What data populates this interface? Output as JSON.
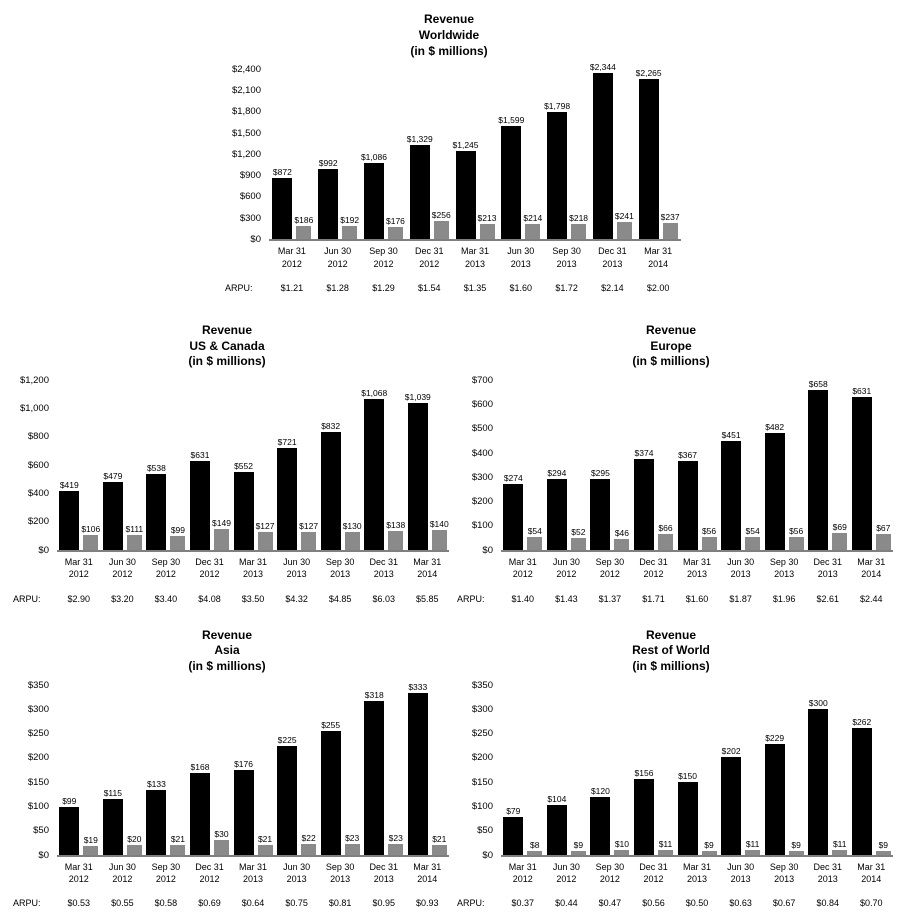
{
  "arpu_caption": "ARPU:",
  "colors": {
    "bar_primary": "#000000",
    "bar_secondary": "#8a8a8a",
    "axis_line": "#7f7f7f",
    "text": "#000000",
    "background": "#ffffff"
  },
  "chart_data": [
    {
      "type": "bar",
      "title_lines": [
        "Revenue",
        "Worldwide",
        "(in $ millions)"
      ],
      "xlabel": "",
      "ylabel": "",
      "grid": false,
      "legend": "none",
      "ylim": [
        0,
        2400
      ],
      "yticks": [
        {
          "value": 0,
          "label": "$0"
        },
        {
          "value": 300,
          "label": "$300"
        },
        {
          "value": 600,
          "label": "$600"
        },
        {
          "value": 900,
          "label": "$900"
        },
        {
          "value": 1200,
          "label": "$1,200"
        },
        {
          "value": 1500,
          "label": "$1,500"
        },
        {
          "value": 1800,
          "label": "$1,800"
        },
        {
          "value": 2100,
          "label": "$2,100"
        },
        {
          "value": 2400,
          "label": "$2,400"
        }
      ],
      "categories": [
        "Mar 31 2012",
        "Jun 30 2012",
        "Sep 30 2012",
        "Dec 31 2012",
        "Mar 31 2013",
        "Jun 30 2013",
        "Sep 30 2013",
        "Dec 31 2013",
        "Mar 31 2014"
      ],
      "category_label_lines": [
        [
          "Mar 31",
          "2012"
        ],
        [
          "Jun 30",
          "2012"
        ],
        [
          "Sep 30",
          "2012"
        ],
        [
          "Dec 31",
          "2012"
        ],
        [
          "Mar 31",
          "2013"
        ],
        [
          "Jun 30",
          "2013"
        ],
        [
          "Sep 30",
          "2013"
        ],
        [
          "Dec 31",
          "2013"
        ],
        [
          "Mar 31",
          "2014"
        ]
      ],
      "series": [
        {
          "name": "revenue",
          "color": "#000000",
          "values": [
            872,
            992,
            1086,
            1329,
            1245,
            1599,
            1798,
            2344,
            2265
          ],
          "labels": [
            "$872",
            "$992",
            "$1,086",
            "$1,329",
            "$1,245",
            "$1,599",
            "$1,798",
            "$2,344",
            "$2,265"
          ]
        },
        {
          "name": "secondary",
          "color": "#8a8a8a",
          "values": [
            186,
            192,
            176,
            256,
            213,
            214,
            218,
            241,
            237
          ],
          "labels": [
            "$186",
            "$192",
            "$176",
            "$256",
            "$213",
            "$214",
            "$218",
            "$241",
            "$237"
          ]
        }
      ],
      "arpu_values": [
        "$1.21",
        "$1.28",
        "$1.29",
        "$1.54",
        "$1.35",
        "$1.60",
        "$1.72",
        "$2.14",
        "$2.00"
      ]
    },
    {
      "type": "bar",
      "title_lines": [
        "Revenue",
        "US & Canada",
        "(in $ millions)"
      ],
      "xlabel": "",
      "ylabel": "",
      "grid": false,
      "legend": "none",
      "ylim": [
        0,
        1200
      ],
      "yticks": [
        {
          "value": 0,
          "label": "$0"
        },
        {
          "value": 200,
          "label": "$200"
        },
        {
          "value": 400,
          "label": "$400"
        },
        {
          "value": 600,
          "label": "$600"
        },
        {
          "value": 800,
          "label": "$800"
        },
        {
          "value": 1000,
          "label": "$1,000"
        },
        {
          "value": 1200,
          "label": "$1,200"
        }
      ],
      "categories": [
        "Mar 31 2012",
        "Jun 30 2012",
        "Sep 30 2012",
        "Dec 31 2012",
        "Mar 31 2013",
        "Jun 30 2013",
        "Sep 30 2013",
        "Dec 31 2013",
        "Mar 31 2014"
      ],
      "category_label_lines": [
        [
          "Mar 31",
          "2012"
        ],
        [
          "Jun 30",
          "2012"
        ],
        [
          "Sep 30",
          "2012"
        ],
        [
          "Dec 31",
          "2012"
        ],
        [
          "Mar 31",
          "2013"
        ],
        [
          "Jun 30",
          "2013"
        ],
        [
          "Sep 30",
          "2013"
        ],
        [
          "Dec 31",
          "2013"
        ],
        [
          "Mar 31",
          "2014"
        ]
      ],
      "series": [
        {
          "name": "revenue",
          "color": "#000000",
          "values": [
            419,
            479,
            538,
            631,
            552,
            721,
            832,
            1068,
            1039
          ],
          "labels": [
            "$419",
            "$479",
            "$538",
            "$631",
            "$552",
            "$721",
            "$832",
            "$1,068",
            "$1,039"
          ]
        },
        {
          "name": "secondary",
          "color": "#8a8a8a",
          "values": [
            106,
            111,
            99,
            149,
            127,
            127,
            130,
            138,
            140
          ],
          "labels": [
            "$106",
            "$111",
            "$99",
            "$149",
            "$127",
            "$127",
            "$130",
            "$138",
            "$140"
          ]
        }
      ],
      "arpu_values": [
        "$2.90",
        "$3.20",
        "$3.40",
        "$4.08",
        "$3.50",
        "$4.32",
        "$4.85",
        "$6.03",
        "$5.85"
      ]
    },
    {
      "type": "bar",
      "title_lines": [
        "Revenue",
        "Europe",
        "(in $ millions)"
      ],
      "xlabel": "",
      "ylabel": "",
      "grid": false,
      "legend": "none",
      "ylim": [
        0,
        700
      ],
      "yticks": [
        {
          "value": 0,
          "label": "$0"
        },
        {
          "value": 100,
          "label": "$100"
        },
        {
          "value": 200,
          "label": "$200"
        },
        {
          "value": 300,
          "label": "$300"
        },
        {
          "value": 400,
          "label": "$400"
        },
        {
          "value": 500,
          "label": "$500"
        },
        {
          "value": 600,
          "label": "$600"
        },
        {
          "value": 700,
          "label": "$700"
        }
      ],
      "categories": [
        "Mar 31 2012",
        "Jun 30 2012",
        "Sep 30 2012",
        "Dec 31 2012",
        "Mar 31 2013",
        "Jun 30 2013",
        "Sep 30 2013",
        "Dec 31 2013",
        "Mar 31 2014"
      ],
      "category_label_lines": [
        [
          "Mar 31",
          "2012"
        ],
        [
          "Jun 30",
          "2012"
        ],
        [
          "Sep 30",
          "2012"
        ],
        [
          "Dec 31",
          "2012"
        ],
        [
          "Mar 31",
          "2013"
        ],
        [
          "Jun 30",
          "2013"
        ],
        [
          "Sep 30",
          "2013"
        ],
        [
          "Dec 31",
          "2013"
        ],
        [
          "Mar 31",
          "2014"
        ]
      ],
      "series": [
        {
          "name": "revenue",
          "color": "#000000",
          "values": [
            274,
            294,
            295,
            374,
            367,
            451,
            482,
            658,
            631
          ],
          "labels": [
            "$274",
            "$294",
            "$295",
            "$374",
            "$367",
            "$451",
            "$482",
            "$658",
            "$631"
          ]
        },
        {
          "name": "secondary",
          "color": "#8a8a8a",
          "values": [
            54,
            52,
            46,
            66,
            56,
            54,
            56,
            69,
            67
          ],
          "labels": [
            "$54",
            "$52",
            "$46",
            "$66",
            "$56",
            "$54",
            "$56",
            "$69",
            "$67"
          ]
        }
      ],
      "arpu_values": [
        "$1.40",
        "$1.43",
        "$1.37",
        "$1.71",
        "$1.60",
        "$1.87",
        "$1.96",
        "$2.61",
        "$2.44"
      ]
    },
    {
      "type": "bar",
      "title_lines": [
        "Revenue",
        "Asia",
        "(in $ millions)"
      ],
      "xlabel": "",
      "ylabel": "",
      "grid": false,
      "legend": "none",
      "ylim": [
        0,
        350
      ],
      "yticks": [
        {
          "value": 0,
          "label": "$0"
        },
        {
          "value": 50,
          "label": "$50"
        },
        {
          "value": 100,
          "label": "$100"
        },
        {
          "value": 150,
          "label": "$150"
        },
        {
          "value": 200,
          "label": "$200"
        },
        {
          "value": 250,
          "label": "$250"
        },
        {
          "value": 300,
          "label": "$300"
        },
        {
          "value": 350,
          "label": "$350"
        }
      ],
      "categories": [
        "Mar 31 2012",
        "Jun 30 2012",
        "Sep 30 2012",
        "Dec 31 2012",
        "Mar 31 2013",
        "Jun 30 2013",
        "Sep 30 2013",
        "Dec 31 2013",
        "Mar 31 2014"
      ],
      "category_label_lines": [
        [
          "Mar 31",
          "2012"
        ],
        [
          "Jun 30",
          "2012"
        ],
        [
          "Sep 30",
          "2012"
        ],
        [
          "Dec 31",
          "2012"
        ],
        [
          "Mar 31",
          "2013"
        ],
        [
          "Jun 30",
          "2013"
        ],
        [
          "Sep 30",
          "2013"
        ],
        [
          "Dec 31",
          "2013"
        ],
        [
          "Mar 31",
          "2014"
        ]
      ],
      "series": [
        {
          "name": "revenue",
          "color": "#000000",
          "values": [
            99,
            115,
            133,
            168,
            176,
            225,
            255,
            318,
            333
          ],
          "labels": [
            "$99",
            "$115",
            "$133",
            "$168",
            "$176",
            "$225",
            "$255",
            "$318",
            "$333"
          ]
        },
        {
          "name": "secondary",
          "color": "#8a8a8a",
          "values": [
            19,
            20,
            21,
            30,
            21,
            22,
            23,
            23,
            21
          ],
          "labels": [
            "$19",
            "$20",
            "$21",
            "$30",
            "$21",
            "$22",
            "$23",
            "$23",
            "$21"
          ]
        }
      ],
      "arpu_values": [
        "$0.53",
        "$0.55",
        "$0.58",
        "$0.69",
        "$0.64",
        "$0.75",
        "$0.81",
        "$0.95",
        "$0.93"
      ]
    },
    {
      "type": "bar",
      "title_lines": [
        "Revenue",
        "Rest of World",
        "(in $ millions)"
      ],
      "xlabel": "",
      "ylabel": "",
      "grid": false,
      "legend": "none",
      "ylim": [
        0,
        350
      ],
      "yticks": [
        {
          "value": 0,
          "label": "$0"
        },
        {
          "value": 50,
          "label": "$50"
        },
        {
          "value": 100,
          "label": "$100"
        },
        {
          "value": 150,
          "label": "$150"
        },
        {
          "value": 200,
          "label": "$200"
        },
        {
          "value": 250,
          "label": "$250"
        },
        {
          "value": 300,
          "label": "$300"
        },
        {
          "value": 350,
          "label": "$350"
        }
      ],
      "categories": [
        "Mar 31 2012",
        "Jun 30 2012",
        "Sep 30 2012",
        "Dec 31 2012",
        "Mar 31 2013",
        "Jun 30 2013",
        "Sep 30 2013",
        "Dec 31 2013",
        "Mar 31 2014"
      ],
      "category_label_lines": [
        [
          "Mar 31",
          "2012"
        ],
        [
          "Jun 30",
          "2012"
        ],
        [
          "Sep 30",
          "2012"
        ],
        [
          "Dec 31",
          "2012"
        ],
        [
          "Mar 31",
          "2013"
        ],
        [
          "Jun 30",
          "2013"
        ],
        [
          "Sep 30",
          "2013"
        ],
        [
          "Dec 31",
          "2013"
        ],
        [
          "Mar 31",
          "2014"
        ]
      ],
      "series": [
        {
          "name": "revenue",
          "color": "#000000",
          "values": [
            79,
            104,
            120,
            156,
            150,
            202,
            229,
            300,
            262
          ],
          "labels": [
            "$79",
            "$104",
            "$120",
            "$156",
            "$150",
            "$202",
            "$229",
            "$300",
            "$262"
          ]
        },
        {
          "name": "secondary",
          "color": "#8a8a8a",
          "values": [
            8,
            9,
            10,
            11,
            9,
            11,
            9,
            11,
            9
          ],
          "labels": [
            "$8",
            "$9",
            "$10",
            "$11",
            "$9",
            "$11",
            "$9",
            "$11",
            "$9"
          ]
        }
      ],
      "arpu_values": [
        "$0.37",
        "$0.44",
        "$0.47",
        "$0.56",
        "$0.50",
        "$0.63",
        "$0.67",
        "$0.84",
        "$0.70"
      ]
    }
  ]
}
